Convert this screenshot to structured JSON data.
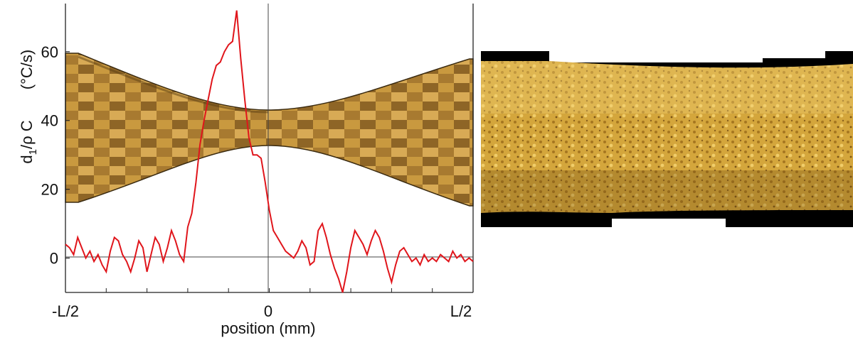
{
  "chart_data": {
    "type": "line",
    "xlabel": "position (mm)",
    "ylabel": "d1/ρ C",
    "ylabel_parts": {
      "main": "d",
      "subscript": "1",
      "rest": "/ρ C"
    },
    "yunit": "(°C/s)",
    "x_tick_labels": [
      "-L/2",
      "0",
      "L/2"
    ],
    "y_ticks": [
      0,
      20,
      40,
      60
    ],
    "xlim": [
      -1,
      1
    ],
    "ylim": [
      -10,
      74
    ],
    "grid": false,
    "series": [
      {
        "color": "#e0151b",
        "x": [
          -1.0,
          -0.98,
          -0.96,
          -0.94,
          -0.92,
          -0.9,
          -0.88,
          -0.86,
          -0.84,
          -0.82,
          -0.8,
          -0.78,
          -0.76,
          -0.74,
          -0.72,
          -0.7,
          -0.68,
          -0.66,
          -0.64,
          -0.62,
          -0.6,
          -0.58,
          -0.56,
          -0.54,
          -0.52,
          -0.5,
          -0.48,
          -0.46,
          -0.44,
          -0.42,
          -0.4,
          -0.38,
          -0.36,
          -0.34,
          -0.32,
          -0.3,
          -0.28,
          -0.26,
          -0.24,
          -0.22,
          -0.2,
          -0.18,
          -0.16,
          -0.14,
          -0.12,
          -0.1,
          -0.08,
          -0.06,
          -0.04,
          -0.02,
          0.0,
          0.02,
          0.04,
          0.06,
          0.08,
          0.1,
          0.12,
          0.14,
          0.16,
          0.18,
          0.2,
          0.22,
          0.24,
          0.26,
          0.28,
          0.3,
          0.32,
          0.34,
          0.36,
          0.38,
          0.4,
          0.42,
          0.44,
          0.46,
          0.48,
          0.5,
          0.52,
          0.54,
          0.56,
          0.58,
          0.6,
          0.62,
          0.64,
          0.66,
          0.68,
          0.7,
          0.72,
          0.74,
          0.76,
          0.78,
          0.8,
          0.82,
          0.84,
          0.86,
          0.88,
          0.9,
          0.92,
          0.94,
          0.96,
          0.98,
          1.0
        ],
        "y": [
          4,
          3,
          1,
          6,
          3,
          0,
          2,
          -1,
          1,
          -2,
          -4,
          2,
          6,
          5,
          1,
          -1,
          -4,
          0,
          5,
          3,
          -4,
          1,
          6,
          4,
          -1,
          3,
          8,
          5,
          1,
          -1,
          9,
          13,
          22,
          33,
          40,
          46,
          52,
          56,
          57,
          60,
          62,
          63,
          72,
          58,
          46,
          35,
          30,
          30,
          29,
          22,
          14,
          8,
          6,
          4,
          2,
          1,
          0,
          2,
          5,
          3,
          -2,
          -1,
          8,
          10,
          6,
          1,
          -3,
          -6,
          -10,
          -4,
          3,
          8,
          6,
          4,
          1,
          5,
          8,
          6,
          2,
          -3,
          -7,
          -2,
          2,
          3,
          1,
          -1,
          0,
          -2,
          1,
          -1,
          0,
          -1,
          1,
          0,
          -1,
          2,
          0,
          1,
          -1,
          0,
          -1
        ]
      }
    ]
  },
  "specimen_photo": {
    "description_icon": "specimen-micrograph-icon"
  }
}
